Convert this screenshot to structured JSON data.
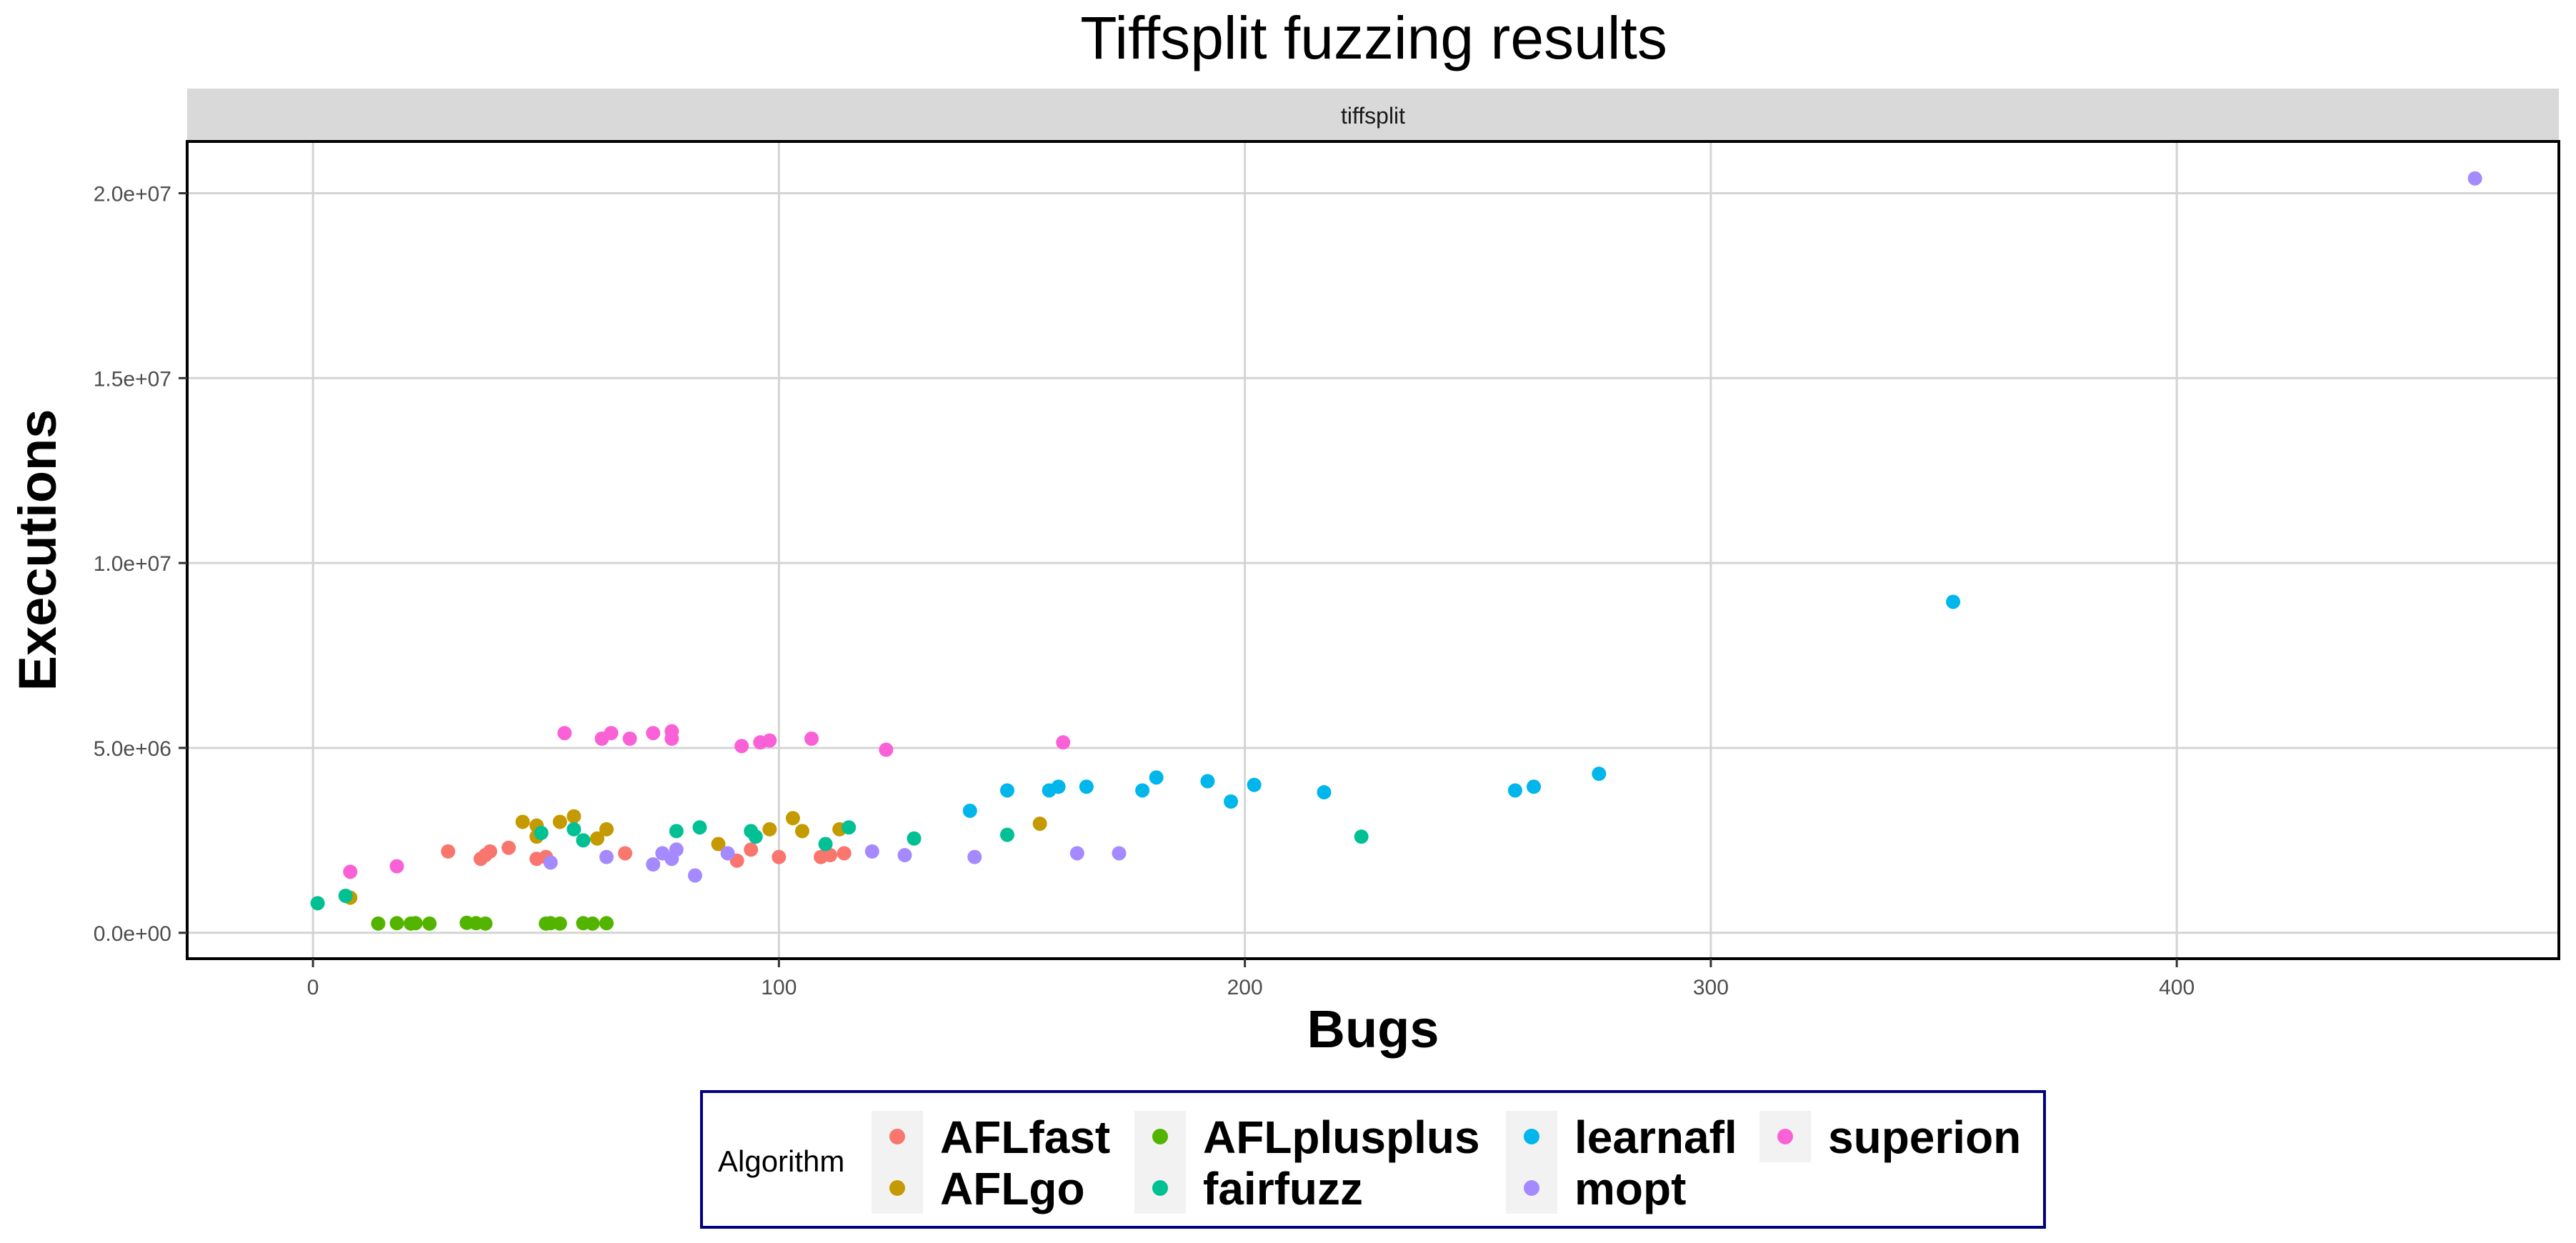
{
  "chart_data": {
    "type": "scatter",
    "title": "Tiffsplit fuzzing results",
    "facet_label": "tiffsplit",
    "xlabel": "Bugs",
    "ylabel": "Executions",
    "xlim": [
      -27,
      482
    ],
    "ylim": [
      -700000,
      21400000
    ],
    "x_ticks": [
      0,
      100,
      200,
      300,
      400
    ],
    "x_tick_labels": [
      "0",
      "100",
      "200",
      "300",
      "400"
    ],
    "y_ticks": [
      0,
      5000000,
      10000000,
      15000000,
      20000000
    ],
    "y_tick_labels": [
      "0.0e+00",
      "5.0e+06",
      "1.0e+07",
      "1.5e+07",
      "2.0e+07"
    ],
    "grid": true,
    "legend": {
      "title": "Algorithm",
      "placement": "bottom",
      "columns": [
        [
          "AFLfast",
          "AFLgo"
        ],
        [
          "AFLplusplus",
          "fairfuzz"
        ],
        [
          "learnafl",
          "mopt"
        ],
        [
          "superion"
        ]
      ]
    },
    "series": [
      {
        "name": "AFLfast",
        "color": "#F8766D",
        "points": [
          [
            29,
            2200000
          ],
          [
            36,
            2000000
          ],
          [
            37,
            2100000
          ],
          [
            38,
            2200000
          ],
          [
            42,
            2300000
          ],
          [
            48,
            2000000
          ],
          [
            50,
            2050000
          ],
          [
            67,
            2150000
          ],
          [
            91,
            1950000
          ],
          [
            94,
            2250000
          ],
          [
            100,
            2050000
          ],
          [
            109,
            2050000
          ],
          [
            111,
            2100000
          ],
          [
            114,
            2150000
          ]
        ]
      },
      {
        "name": "AFLgo",
        "color": "#C49A00",
        "points": [
          [
            8,
            950000
          ],
          [
            45,
            3000000
          ],
          [
            48,
            2900000
          ],
          [
            48,
            2600000
          ],
          [
            53,
            3000000
          ],
          [
            56,
            3150000
          ],
          [
            61,
            2550000
          ],
          [
            63,
            2800000
          ],
          [
            87,
            2400000
          ],
          [
            98,
            2800000
          ],
          [
            103,
            3100000
          ],
          [
            105,
            2750000
          ],
          [
            113,
            2800000
          ],
          [
            156,
            2950000
          ]
        ]
      },
      {
        "name": "AFLplusplus",
        "color": "#53B400",
        "points": [
          [
            14,
            250000
          ],
          [
            18,
            260000
          ],
          [
            21,
            250000
          ],
          [
            22,
            260000
          ],
          [
            25,
            250000
          ],
          [
            33,
            270000
          ],
          [
            35,
            260000
          ],
          [
            37,
            250000
          ],
          [
            50,
            250000
          ],
          [
            51,
            260000
          ],
          [
            53,
            250000
          ],
          [
            58,
            260000
          ],
          [
            60,
            250000
          ],
          [
            63,
            260000
          ]
        ]
      },
      {
        "name": "fairfuzz",
        "color": "#00C094",
        "points": [
          [
            1,
            800000
          ],
          [
            7,
            1000000
          ],
          [
            49,
            2700000
          ],
          [
            56,
            2800000
          ],
          [
            58,
            2500000
          ],
          [
            78,
            2750000
          ],
          [
            83,
            2850000
          ],
          [
            94,
            2750000
          ],
          [
            95,
            2600000
          ],
          [
            110,
            2400000
          ],
          [
            115,
            2850000
          ],
          [
            129,
            2550000
          ],
          [
            149,
            2650000
          ],
          [
            225,
            2600000
          ]
        ]
      },
      {
        "name": "learnafl",
        "color": "#00B6EB",
        "points": [
          [
            141,
            3300000
          ],
          [
            149,
            3850000
          ],
          [
            158,
            3850000
          ],
          [
            160,
            3950000
          ],
          [
            166,
            3950000
          ],
          [
            178,
            3850000
          ],
          [
            181,
            4200000
          ],
          [
            192,
            4100000
          ],
          [
            197,
            3550000
          ],
          [
            202,
            4000000
          ],
          [
            217,
            3800000
          ],
          [
            258,
            3850000
          ],
          [
            262,
            3950000
          ],
          [
            276,
            4300000
          ],
          [
            352,
            8950000
          ]
        ]
      },
      {
        "name": "mopt",
        "color": "#A58AFF",
        "points": [
          [
            51,
            1900000
          ],
          [
            63,
            2050000
          ],
          [
            73,
            1850000
          ],
          [
            75,
            2150000
          ],
          [
            77,
            2000000
          ],
          [
            78,
            2250000
          ],
          [
            82,
            1550000
          ],
          [
            89,
            2150000
          ],
          [
            120,
            2200000
          ],
          [
            127,
            2100000
          ],
          [
            142,
            2050000
          ],
          [
            164,
            2150000
          ],
          [
            173,
            2150000
          ],
          [
            464,
            20400000
          ]
        ]
      },
      {
        "name": "superion",
        "color": "#FB61D7",
        "points": [
          [
            8,
            1650000
          ],
          [
            18,
            1800000
          ],
          [
            54,
            5400000
          ],
          [
            62,
            5250000
          ],
          [
            64,
            5400000
          ],
          [
            68,
            5250000
          ],
          [
            73,
            5400000
          ],
          [
            77,
            5450000
          ],
          [
            77,
            5250000
          ],
          [
            92,
            5050000
          ],
          [
            96,
            5150000
          ],
          [
            98,
            5200000
          ],
          [
            107,
            5250000
          ],
          [
            123,
            4950000
          ],
          [
            161,
            5150000
          ]
        ]
      }
    ]
  }
}
